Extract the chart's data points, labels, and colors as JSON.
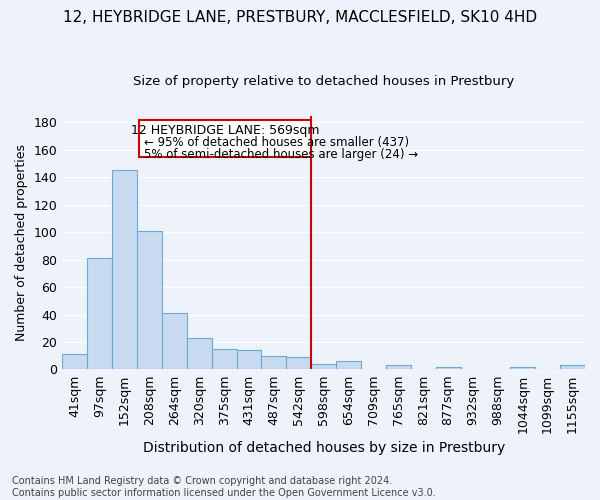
{
  "title": "12, HEYBRIDGE LANE, PRESTBURY, MACCLESFIELD, SK10 4HD",
  "subtitle": "Size of property relative to detached houses in Prestbury",
  "xlabel": "Distribution of detached houses by size in Prestbury",
  "ylabel": "Number of detached properties",
  "footnote": "Contains HM Land Registry data © Crown copyright and database right 2024.\nContains public sector information licensed under the Open Government Licence v3.0.",
  "bar_labels": [
    "41sqm",
    "97sqm",
    "152sqm",
    "208sqm",
    "264sqm",
    "320sqm",
    "375sqm",
    "431sqm",
    "487sqm",
    "542sqm",
    "598sqm",
    "654sqm",
    "709sqm",
    "765sqm",
    "821sqm",
    "877sqm",
    "932sqm",
    "988sqm",
    "1044sqm",
    "1099sqm",
    "1155sqm"
  ],
  "bar_values": [
    11,
    81,
    145,
    101,
    41,
    23,
    15,
    14,
    10,
    9,
    4,
    6,
    0,
    3,
    0,
    2,
    0,
    0,
    2,
    0,
    3
  ],
  "bar_color": "#c8daf0",
  "bar_edge_color": "#6aaad4",
  "property_line_label": "12 HEYBRIDGE LANE: 569sqm",
  "annotation_line1": "← 95% of detached houses are smaller (437)",
  "annotation_line2": "5% of semi-detached houses are larger (24) →",
  "annotation_box_color": "#cc0000",
  "ylim": [
    0,
    185
  ],
  "yticks": [
    0,
    20,
    40,
    60,
    80,
    100,
    120,
    140,
    160,
    180
  ],
  "background_color": "#eef2fa",
  "grid_color": "#ffffff",
  "title_fontsize": 11,
  "subtitle_fontsize": 9.5,
  "xlabel_fontsize": 10,
  "ylabel_fontsize": 9,
  "tick_fontsize": 9,
  "footnote_fontsize": 7
}
